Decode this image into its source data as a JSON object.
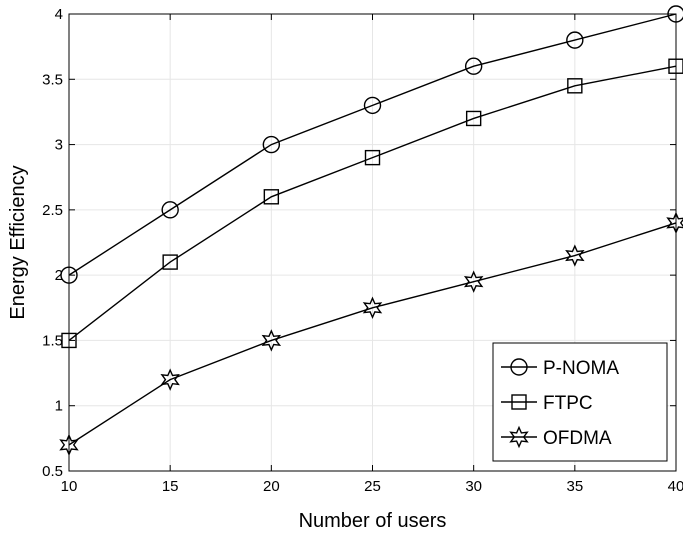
{
  "chart_data": {
    "type": "line",
    "xlabel": "Number of users",
    "ylabel": "Energy Efficiency",
    "xlim": [
      10,
      40
    ],
    "ylim": [
      0.5,
      4
    ],
    "x": [
      10,
      15,
      20,
      25,
      30,
      35,
      40
    ],
    "xticks": [
      "10",
      "15",
      "20",
      "25",
      "30",
      "35",
      "40"
    ],
    "yticks": [
      "0.5",
      "1",
      "1.5",
      "2",
      "2.5",
      "3",
      "3.5",
      "4"
    ],
    "grid": true,
    "legend_position": "bottom-right",
    "series": [
      {
        "name": "P-NOMA",
        "marker": "circle",
        "color": "#000000",
        "values": [
          2.0,
          2.5,
          3.0,
          3.3,
          3.6,
          3.8,
          4.0
        ]
      },
      {
        "name": "FTPC",
        "marker": "square",
        "color": "#000000",
        "values": [
          1.5,
          2.1,
          2.6,
          2.9,
          3.2,
          3.45,
          3.6
        ]
      },
      {
        "name": "OFDMA",
        "marker": "hexagram",
        "color": "#000000",
        "values": [
          0.7,
          1.2,
          1.5,
          1.75,
          1.95,
          2.15,
          2.4
        ]
      }
    ]
  }
}
